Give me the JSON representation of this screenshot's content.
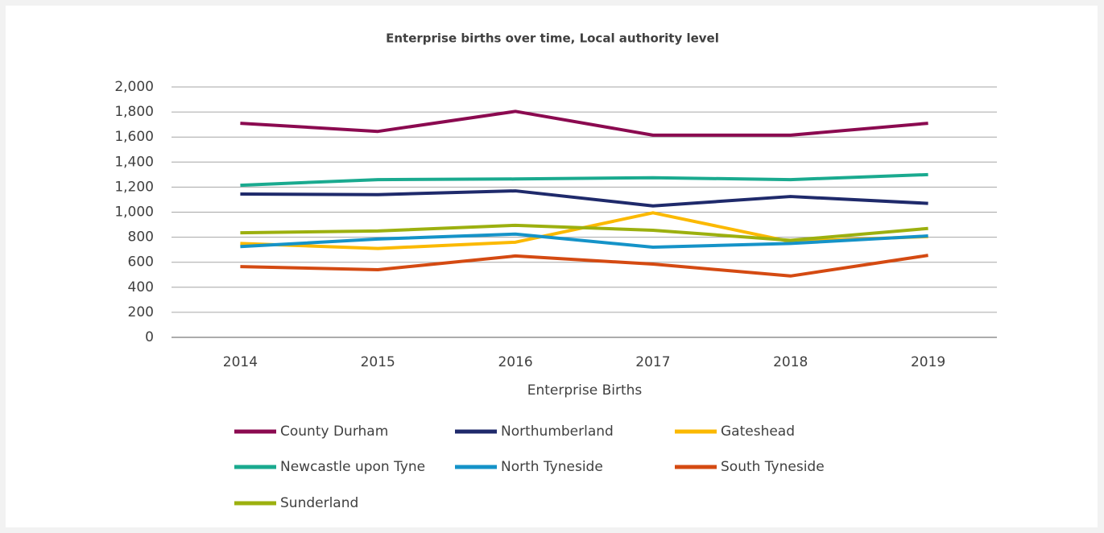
{
  "chart_data": {
    "type": "line",
    "title": "Enterprise births over time, Local authority level",
    "xlabel": "Enterprise Births",
    "categories": [
      "2014",
      "2015",
      "2016",
      "2017",
      "2018",
      "2019"
    ],
    "series": [
      {
        "name": "County Durham",
        "color": "#8b0a50",
        "values": [
          1710,
          1645,
          1805,
          1615,
          1615,
          1710
        ]
      },
      {
        "name": "Northumberland",
        "color": "#1f2a6b",
        "values": [
          1145,
          1140,
          1170,
          1050,
          1125,
          1070
        ]
      },
      {
        "name": "Gateshead",
        "color": "#fbb900",
        "values": [
          750,
          710,
          760,
          995,
          765,
          805
        ]
      },
      {
        "name": "Newcastle upon Tyne",
        "color": "#1aaa8f",
        "values": [
          1215,
          1260,
          1265,
          1275,
          1260,
          1300
        ]
      },
      {
        "name": "North Tyneside",
        "color": "#1593c8",
        "values": [
          725,
          785,
          825,
          720,
          750,
          810
        ]
      },
      {
        "name": "South Tyneside",
        "color": "#d44a12",
        "values": [
          565,
          540,
          650,
          585,
          490,
          655
        ]
      },
      {
        "name": "Sunderland",
        "color": "#9cb00f",
        "values": [
          835,
          850,
          895,
          855,
          775,
          870
        ]
      }
    ],
    "ylim": [
      0,
      2000
    ],
    "yticks": [
      0,
      200,
      400,
      600,
      800,
      {
        "value": 1000,
        "label": "1,000"
      },
      {
        "value": 1200,
        "label": "1,200"
      },
      {
        "value": 1400,
        "label": "1,400"
      },
      {
        "value": 1600,
        "label": "1,600"
      },
      {
        "value": 1800,
        "label": "1,800"
      },
      {
        "value": 2000,
        "label": "2,000"
      }
    ],
    "grid": true,
    "legend": "bottom"
  }
}
